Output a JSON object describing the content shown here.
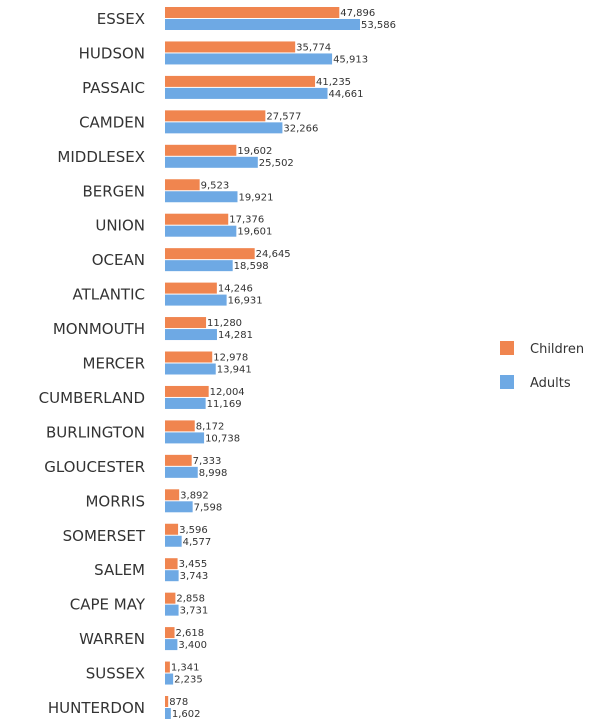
{
  "chart_data": {
    "type": "bar",
    "orientation": "horizontal",
    "categories": [
      "ESSEX",
      "HUDSON",
      "PASSAIC",
      "CAMDEN",
      "MIDDLESEX",
      "BERGEN",
      "UNION",
      "OCEAN",
      "ATLANTIC",
      "MONMOUTH",
      "MERCER",
      "CUMBERLAND",
      "BURLINGTON",
      "GLOUCESTER",
      "MORRIS",
      "SOMERSET",
      "SALEM",
      "CAPE MAY",
      "WARREN",
      "SUSSEX",
      "HUNTERDON"
    ],
    "series": [
      {
        "name": "Children",
        "color": "#f0854f",
        "values": [
          47896,
          35774,
          41235,
          27577,
          19602,
          9523,
          17376,
          24645,
          14246,
          11280,
          12978,
          12004,
          8172,
          7333,
          3892,
          3596,
          3455,
          2858,
          2618,
          1341,
          878
        ],
        "labels": [
          "47,896",
          "35,774",
          "41,235",
          "27,577",
          "19,602",
          "9,523",
          "17,376",
          "24,645",
          "14,246",
          "11,280",
          "12,978",
          "12,004",
          "8,172",
          "7,333",
          "3,892",
          "3,596",
          "3,455",
          "2,858",
          "2,618",
          "1,341",
          "878"
        ]
      },
      {
        "name": "Adults",
        "color": "#6ea9e4",
        "values": [
          53586,
          45913,
          44661,
          32266,
          25502,
          19921,
          19601,
          18598,
          16931,
          14281,
          13941,
          11169,
          10738,
          8998,
          7598,
          4577,
          3743,
          3731,
          3400,
          2235,
          1602
        ],
        "labels": [
          "53,586",
          "45,913",
          "44,661",
          "32,266",
          "25,502",
          "19,921",
          "19,601",
          "18,598",
          "16,931",
          "14,281",
          "13,941",
          "11,169",
          "10,738",
          "8,998",
          "7,598",
          "4,577",
          "3,743",
          "3,731",
          "3,400",
          "2,235",
          "1,602"
        ]
      }
    ],
    "legend": {
      "position": "right",
      "items": [
        "Children",
        "Adults"
      ]
    },
    "grid": false,
    "axis_lines": false
  }
}
